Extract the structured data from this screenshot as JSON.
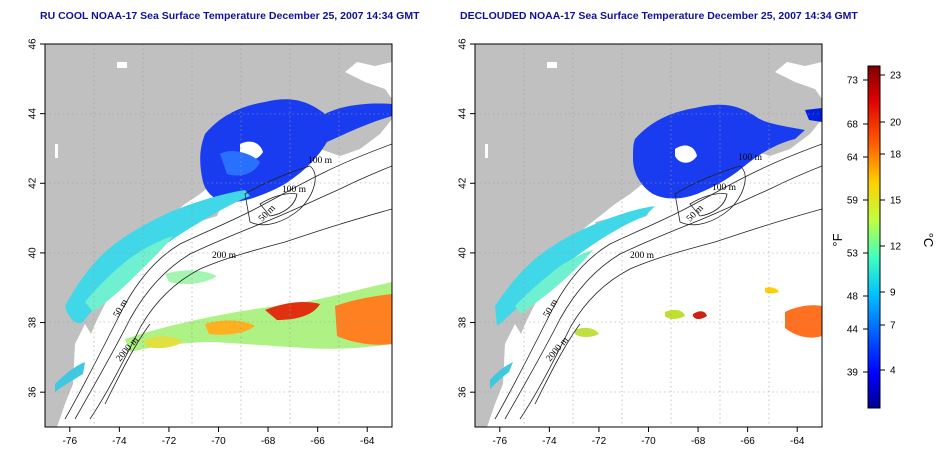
{
  "panels": [
    {
      "id": "left",
      "title": "RU COOL NOAA-17 Sea Surface Temperature December 25, 2007 14:34 GMT",
      "contour_labels": [
        "100 m",
        "100 m",
        "50 m",
        "200 m",
        "50 m",
        "2000 m"
      ]
    },
    {
      "id": "right",
      "title": "DECLOUDED NOAA-17 Sea Surface Temperature December 25, 2007 14:34 GMT",
      "contour_labels": [
        "100 m",
        "100 m",
        "50 m",
        "200 m",
        "50 m",
        "2000 m"
      ]
    }
  ],
  "axes": {
    "lon_ticks": [
      "-76",
      "-74",
      "-72",
      "-70",
      "-68",
      "-66",
      "-64"
    ],
    "lat_ticks": [
      "36",
      "38",
      "40",
      "42",
      "44",
      "46"
    ],
    "lon_range": [
      -77,
      -63
    ],
    "lat_range": [
      35,
      46
    ],
    "grid": "dotted"
  },
  "colorbar": {
    "fahrenheit_unit": "°F",
    "celsius_unit": "°C",
    "fahrenheit_ticks": [
      "73",
      "68",
      "64",
      "59",
      "53",
      "48",
      "44",
      "39"
    ],
    "celsius_ticks": [
      "23",
      "20",
      "18",
      "15",
      "12",
      "9",
      "7",
      "4"
    ],
    "colors": [
      "#000090",
      "#0000ff",
      "#0060ff",
      "#00c0ff",
      "#40ffc0",
      "#c0ff40",
      "#ffd000",
      "#ff6000",
      "#e00000",
      "#800000"
    ]
  },
  "colors": {
    "land": "#c0c0c0",
    "ocean": "#ffffff",
    "title": "#1010a0"
  }
}
